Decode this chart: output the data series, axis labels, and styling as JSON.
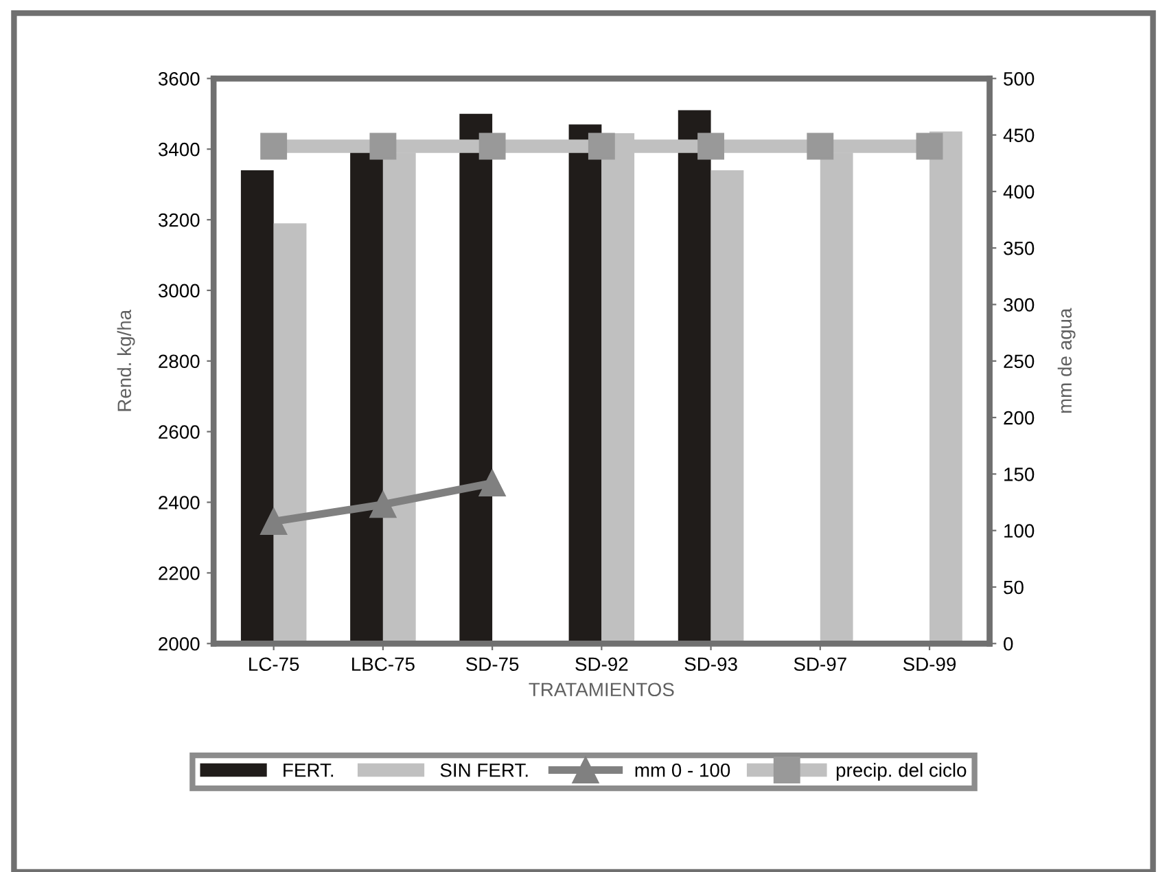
{
  "chart_data": {
    "type": "bar",
    "xlabel": "TRATAMIENTOS",
    "ylabel": "Rend. kg/ha",
    "y2label": "mm de agua",
    "categories": [
      "LC-75",
      "LBC-75",
      "SD-75",
      "SD-92",
      "SD-93",
      "SD-97",
      "SD-99"
    ],
    "series": [
      {
        "name": "FERT.",
        "color": "#201c1a",
        "values": [
          3340,
          3400,
          3500,
          3470,
          3510,
          null,
          null
        ]
      },
      {
        "name": "SIN FERT.",
        "color": "#c0c0c0",
        "values": [
          3190,
          3390,
          null,
          3445,
          3340,
          3390,
          3450
        ]
      },
      {
        "name": "mm 0 - 100",
        "type": "line",
        "axis": "y2",
        "color": "#808080",
        "marker": "triangle",
        "values": [
          108,
          123,
          142,
          null,
          null,
          null,
          null
        ]
      },
      {
        "name": "precip. del ciclo",
        "type": "line",
        "axis": "y2",
        "color": "#c0c0c0",
        "marker": "square",
        "values": [
          440,
          440,
          440,
          440,
          440,
          440,
          440
        ]
      }
    ],
    "ylim": [
      2000,
      3600
    ],
    "yticks": [
      2000,
      2200,
      2400,
      2600,
      2800,
      3000,
      3200,
      3400,
      3600
    ],
    "y2lim": [
      0,
      500
    ],
    "y2ticks": [
      0,
      50,
      100,
      150,
      200,
      250,
      300,
      350,
      400,
      450,
      500
    ],
    "grid": false,
    "legend": "bottom"
  }
}
